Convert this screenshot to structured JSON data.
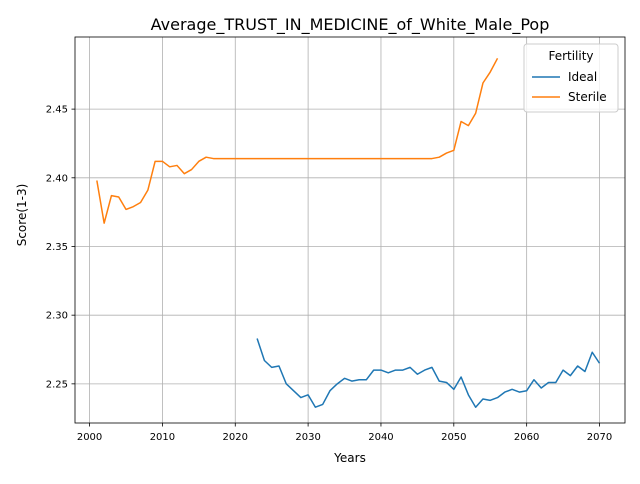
{
  "chart_data": {
    "type": "line",
    "title": "Average_TRUST_IN_MEDICINE_of_White_Male_Pop",
    "xlabel": "Years",
    "ylabel": "Score(1-3)",
    "xlim": [
      1998,
      2073.5
    ],
    "ylim": [
      2.2215,
      2.5025
    ],
    "x_ticks": [
      2000,
      2010,
      2020,
      2030,
      2040,
      2050,
      2060,
      2070
    ],
    "y_ticks": [
      2.25,
      2.3,
      2.35,
      2.4,
      2.45
    ],
    "x_tick_labels": [
      "2000",
      "2010",
      "2020",
      "2030",
      "2040",
      "2050",
      "2060",
      "2070"
    ],
    "y_tick_labels": [
      "2.25",
      "2.30",
      "2.35",
      "2.40",
      "2.45"
    ],
    "grid": true,
    "legend": {
      "title": "Fertility",
      "placement": "top-right"
    },
    "series": [
      {
        "name": "Ideal",
        "color": "#1f77b4",
        "x": [
          2023,
          2024,
          2025,
          2026,
          2027,
          2028,
          2029,
          2030,
          2031,
          2032,
          2033,
          2034,
          2035,
          2036,
          2037,
          2038,
          2039,
          2040,
          2041,
          2042,
          2043,
          2044,
          2045,
          2046,
          2047,
          2048,
          2049,
          2050,
          2051,
          2052,
          2053,
          2054,
          2055,
          2056,
          2057,
          2058,
          2059,
          2060,
          2061,
          2062,
          2063,
          2064,
          2065,
          2066,
          2067,
          2068,
          2069,
          2070
        ],
        "y": [
          2.283,
          2.267,
          2.262,
          2.263,
          2.25,
          2.245,
          2.24,
          2.242,
          2.233,
          2.235,
          2.245,
          2.25,
          2.254,
          2.252,
          2.253,
          2.253,
          2.26,
          2.26,
          2.258,
          2.26,
          2.26,
          2.262,
          2.257,
          2.26,
          2.262,
          2.252,
          2.251,
          2.246,
          2.255,
          2.242,
          2.233,
          2.239,
          2.238,
          2.24,
          2.244,
          2.246,
          2.244,
          2.245,
          2.253,
          2.247,
          2.251,
          2.251,
          2.26,
          2.256,
          2.263,
          2.259,
          2.273,
          2.265
        ]
      },
      {
        "name": "Sterile",
        "color": "#ff7f0e",
        "x": [
          2001,
          2002,
          2003,
          2004,
          2005,
          2006,
          2007,
          2008,
          2009,
          2010,
          2011,
          2012,
          2013,
          2014,
          2015,
          2016,
          2017,
          2018,
          2019,
          2020,
          2021,
          2022,
          2023,
          2024,
          2025,
          2026,
          2027,
          2028,
          2029,
          2030,
          2031,
          2032,
          2033,
          2034,
          2035,
          2036,
          2037,
          2038,
          2039,
          2040,
          2041,
          2042,
          2043,
          2044,
          2045,
          2046,
          2047,
          2048,
          2049,
          2050,
          2051,
          2052,
          2053,
          2054,
          2055,
          2056
        ],
        "y": [
          2.398,
          2.367,
          2.387,
          2.386,
          2.377,
          2.379,
          2.382,
          2.391,
          2.412,
          2.412,
          2.408,
          2.409,
          2.403,
          2.406,
          2.412,
          2.415,
          2.414,
          2.414,
          2.414,
          2.414,
          2.414,
          2.414,
          2.414,
          2.414,
          2.414,
          2.414,
          2.414,
          2.414,
          2.414,
          2.414,
          2.414,
          2.414,
          2.414,
          2.414,
          2.414,
          2.414,
          2.414,
          2.414,
          2.414,
          2.414,
          2.414,
          2.414,
          2.414,
          2.414,
          2.414,
          2.414,
          2.414,
          2.415,
          2.418,
          2.42,
          2.441,
          2.438,
          2.447,
          2.469,
          2.477,
          2.487
        ]
      }
    ]
  }
}
